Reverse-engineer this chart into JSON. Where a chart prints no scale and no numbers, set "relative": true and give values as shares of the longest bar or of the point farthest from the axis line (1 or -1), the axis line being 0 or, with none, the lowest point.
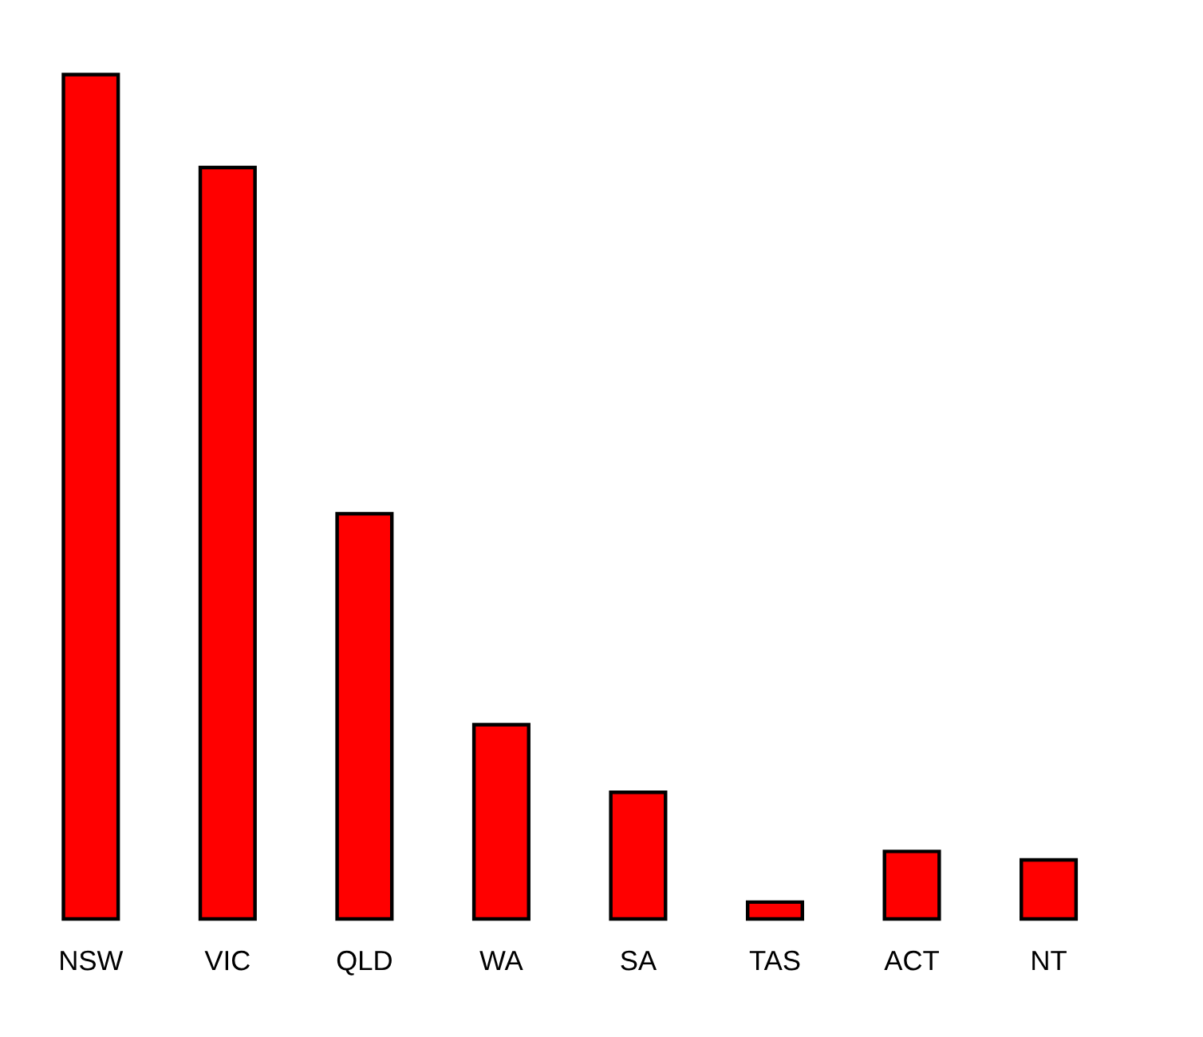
{
  "chart_data": {
    "type": "bar",
    "relative": true,
    "categories": [
      "NSW",
      "VIC",
      "QLD",
      "WA",
      "SA",
      "TAS",
      "ACT",
      "NT"
    ],
    "values": [
      1,
      0.89,
      0.48,
      0.23,
      0.15,
      0.02,
      0.08,
      0.07
    ],
    "color": "#ff0000"
  }
}
